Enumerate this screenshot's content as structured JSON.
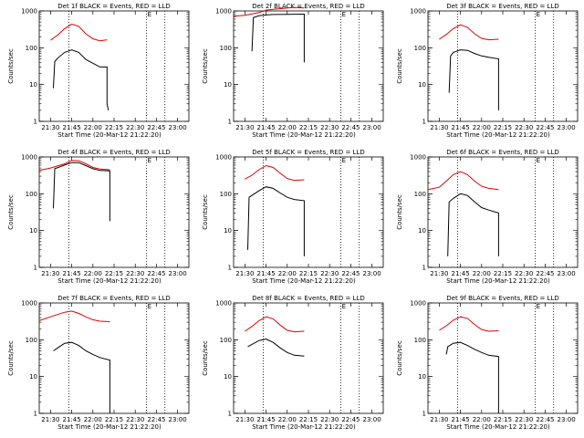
{
  "page": {
    "background": "#ffffff"
  },
  "colors": {
    "events": "#000000",
    "lld": "#dd0000"
  },
  "chart_data": [
    {
      "type": "line",
      "title": "Det 1f BLACK = Events, RED = LLD",
      "xlabel": "Start Time (20-Mar-12 21:22:20)",
      "ylabel": "Counts/sec",
      "yscale": "log",
      "ylim": [
        1,
        1000
      ],
      "xlim": [
        "21:22",
        "23:08"
      ],
      "xticks": [
        "21:30",
        "21:45",
        "22:00",
        "22:15",
        "22:30",
        "22:45",
        "23:00"
      ],
      "yticks": [
        "1",
        "10",
        "100",
        "1000"
      ],
      "grid": false,
      "vlines": [
        "21:43",
        "22:38",
        "22:51"
      ],
      "marker": "E",
      "series": [
        {
          "color": "#dd0000",
          "x": [
            "21:30",
            "21:35",
            "21:40",
            "21:45",
            "21:50",
            "21:55",
            "22:00",
            "22:05",
            "22:10"
          ],
          "y": [
            160,
            220,
            330,
            440,
            380,
            240,
            175,
            155,
            165
          ]
        },
        {
          "color": "#000000",
          "x": [
            "21:32",
            "21:33",
            "21:35",
            "21:40",
            "21:45",
            "21:50",
            "21:55",
            "22:00",
            "22:05",
            "22:10",
            "22:10",
            "22:11"
          ],
          "y": [
            8,
            42,
            52,
            75,
            88,
            75,
            48,
            38,
            30,
            30,
            3,
            2
          ]
        }
      ]
    },
    {
      "type": "line",
      "title": "Det 2f BLACK = Events, RED = LLD",
      "xlabel": "Start Time (20-Mar-12 21:22:20)",
      "ylabel": "Counts/sec",
      "yscale": "log",
      "ylim": [
        1,
        1000
      ],
      "xlim": [
        "21:22",
        "23:08"
      ],
      "xticks": [
        "21:30",
        "21:45",
        "22:00",
        "22:15",
        "22:30",
        "22:45",
        "23:00"
      ],
      "yticks": [
        "1",
        "10",
        "100",
        "1000"
      ],
      "grid": false,
      "vlines": [
        "21:43",
        "22:38",
        "22:51"
      ],
      "marker": "E",
      "series": [
        {
          "color": "#dd0000",
          "x": [
            "21:22",
            "21:30",
            "21:40",
            "21:45",
            "21:50",
            "21:55",
            "22:00",
            "22:05",
            "22:12"
          ],
          "y": [
            720,
            760,
            900,
            1050,
            1100,
            1150,
            1200,
            1250,
            1200
          ]
        },
        {
          "color": "#000000",
          "x": [
            "21:35",
            "21:36",
            "21:40",
            "21:45",
            "21:50",
            "22:00",
            "22:10",
            "22:12",
            "22:12"
          ],
          "y": [
            80,
            660,
            740,
            780,
            800,
            810,
            820,
            820,
            40
          ]
        }
      ]
    },
    {
      "type": "line",
      "title": "Det 3f BLACK = Events, RED = LLD",
      "xlabel": "Start Time (20-Mar-12 21:22:20)",
      "ylabel": "Counts/sec",
      "yscale": "log",
      "ylim": [
        1,
        1000
      ],
      "xlim": [
        "21:22",
        "23:08"
      ],
      "xticks": [
        "21:30",
        "21:45",
        "22:00",
        "22:15",
        "22:30",
        "22:45",
        "23:00"
      ],
      "yticks": [
        "1",
        "10",
        "100",
        "1000"
      ],
      "grid": false,
      "vlines": [
        "21:43",
        "22:38",
        "22:51"
      ],
      "marker": "E",
      "series": [
        {
          "color": "#dd0000",
          "x": [
            "21:30",
            "21:35",
            "21:40",
            "21:45",
            "21:50",
            "21:55",
            "22:00",
            "22:05",
            "22:12"
          ],
          "y": [
            170,
            230,
            330,
            420,
            360,
            240,
            180,
            165,
            170
          ]
        },
        {
          "color": "#000000",
          "x": [
            "21:37",
            "21:38",
            "21:40",
            "21:45",
            "21:50",
            "21:55",
            "22:00",
            "22:05",
            "22:12",
            "22:12"
          ],
          "y": [
            6,
            60,
            75,
            88,
            85,
            70,
            60,
            55,
            50,
            2
          ]
        }
      ]
    },
    {
      "type": "line",
      "title": "Det 4f BLACK = Events, RED = LLD",
      "xlabel": "Start Time (20-Mar-12 21:22:20)",
      "ylabel": "Counts/sec",
      "yscale": "log",
      "ylim": [
        1,
        1000
      ],
      "xlim": [
        "21:22",
        "23:08"
      ],
      "xticks": [
        "21:30",
        "21:45",
        "22:00",
        "22:15",
        "22:30",
        "22:45",
        "23:00"
      ],
      "yticks": [
        "1",
        "10",
        "100",
        "1000"
      ],
      "grid": false,
      "vlines": [
        "21:43",
        "22:38",
        "22:51"
      ],
      "marker": "E",
      "series": [
        {
          "color": "#dd0000",
          "x": [
            "21:22",
            "21:30",
            "21:40",
            "21:45",
            "21:50",
            "21:55",
            "22:00",
            "22:05",
            "22:12"
          ],
          "y": [
            430,
            500,
            650,
            800,
            790,
            650,
            520,
            470,
            450
          ]
        },
        {
          "color": "#000000",
          "x": [
            "21:32",
            "21:33",
            "21:40",
            "21:45",
            "21:50",
            "21:55",
            "22:00",
            "22:05",
            "22:12",
            "22:12"
          ],
          "y": [
            40,
            480,
            600,
            700,
            700,
            580,
            480,
            430,
            420,
            18
          ]
        }
      ]
    },
    {
      "type": "line",
      "title": "Det 5f BLACK = Events, RED = LLD",
      "xlabel": "Start Time (20-Mar-12 21:22:20)",
      "ylabel": "Counts/sec",
      "yscale": "log",
      "ylim": [
        1,
        1000
      ],
      "xlim": [
        "21:22",
        "23:08"
      ],
      "xticks": [
        "21:30",
        "21:45",
        "22:00",
        "22:15",
        "22:30",
        "22:45",
        "23:00"
      ],
      "yticks": [
        "1",
        "10",
        "100",
        "1000"
      ],
      "grid": false,
      "vlines": [
        "21:43",
        "22:38",
        "22:51"
      ],
      "marker": "E",
      "series": [
        {
          "color": "#dd0000",
          "x": [
            "21:30",
            "21:35",
            "21:40",
            "21:45",
            "21:50",
            "21:55",
            "22:00",
            "22:05",
            "22:12"
          ],
          "y": [
            250,
            320,
            450,
            580,
            520,
            360,
            260,
            230,
            240
          ]
        },
        {
          "color": "#000000",
          "x": [
            "21:32",
            "21:33",
            "21:40",
            "21:45",
            "21:50",
            "21:55",
            "22:00",
            "22:05",
            "22:12",
            "22:12"
          ],
          "y": [
            3,
            80,
            120,
            155,
            140,
            105,
            80,
            70,
            65,
            2
          ]
        }
      ]
    },
    {
      "type": "line",
      "title": "Det 6f BLACK = Events, RED = LLD",
      "xlabel": "Start Time (20-Mar-12 21:22:20)",
      "ylabel": "Counts/sec",
      "yscale": "log",
      "ylim": [
        1,
        1000
      ],
      "xlim": [
        "21:22",
        "23:08"
      ],
      "xticks": [
        "21:30",
        "21:45",
        "22:00",
        "22:15",
        "22:30",
        "22:45",
        "23:00"
      ],
      "yticks": [
        "1",
        "10",
        "100",
        "1000"
      ],
      "grid": false,
      "vlines": [
        "21:43",
        "22:38",
        "22:51"
      ],
      "marker": "E",
      "series": [
        {
          "color": "#dd0000",
          "x": [
            "21:22",
            "21:30",
            "21:35",
            "21:40",
            "21:45",
            "21:50",
            "21:55",
            "22:00",
            "22:05",
            "22:12"
          ],
          "y": [
            130,
            150,
            220,
            330,
            400,
            330,
            220,
            160,
            140,
            130
          ]
        },
        {
          "color": "#000000",
          "x": [
            "21:36",
            "21:37",
            "21:40",
            "21:45",
            "21:50",
            "21:55",
            "22:00",
            "22:05",
            "22:12",
            "22:12"
          ],
          "y": [
            2,
            60,
            75,
            100,
            90,
            60,
            42,
            36,
            30,
            2
          ]
        }
      ]
    },
    {
      "type": "line",
      "title": "Det 7f BLACK = Events, RED = LLD",
      "xlabel": "Start Time (20-Mar-12 21:22:20)",
      "ylabel": "Counts/sec",
      "yscale": "log",
      "ylim": [
        1,
        1000
      ],
      "xlim": [
        "21:22",
        "23:08"
      ],
      "xticks": [
        "21:30",
        "21:45",
        "22:00",
        "22:15",
        "22:30",
        "22:45",
        "23:00"
      ],
      "yticks": [
        "1",
        "10",
        "100",
        "1000"
      ],
      "grid": false,
      "vlines": [
        "21:43",
        "22:38",
        "22:51"
      ],
      "marker": "E",
      "series": [
        {
          "color": "#dd0000",
          "x": [
            "21:22",
            "21:30",
            "21:40",
            "21:45",
            "21:50",
            "21:55",
            "22:00",
            "22:05",
            "22:12"
          ],
          "y": [
            330,
            420,
            560,
            600,
            520,
            420,
            350,
            320,
            310
          ]
        },
        {
          "color": "#000000",
          "x": [
            "21:32",
            "21:35",
            "21:40",
            "21:45",
            "21:50",
            "21:55",
            "22:00",
            "22:05",
            "22:12",
            "22:12"
          ],
          "y": [
            50,
            60,
            80,
            85,
            70,
            50,
            40,
            33,
            28,
            1
          ]
        }
      ]
    },
    {
      "type": "line",
      "title": "Det 8f BLACK = Events, RED = LLD",
      "xlabel": "Start Time (20-Mar-12 21:22:20)",
      "ylabel": "Counts/sec",
      "yscale": "log",
      "ylim": [
        1,
        1000
      ],
      "xlim": [
        "21:22",
        "23:08"
      ],
      "xticks": [
        "21:30",
        "21:45",
        "22:00",
        "22:15",
        "22:30",
        "22:45",
        "23:00"
      ],
      "yticks": [
        "1",
        "10",
        "100",
        "1000"
      ],
      "grid": false,
      "vlines": [
        "21:43",
        "22:38",
        "22:51"
      ],
      "marker": "E",
      "series": [
        {
          "color": "#dd0000",
          "x": [
            "21:30",
            "21:35",
            "21:40",
            "21:45",
            "21:50",
            "21:55",
            "22:00",
            "22:05",
            "22:12"
          ],
          "y": [
            170,
            230,
            330,
            420,
            370,
            250,
            180,
            165,
            170
          ]
        },
        {
          "color": "#000000",
          "x": [
            "21:32",
            "21:35",
            "21:40",
            "21:45",
            "21:50",
            "21:55",
            "22:00",
            "22:05",
            "22:12"
          ],
          "y": [
            65,
            75,
            95,
            105,
            85,
            60,
            45,
            38,
            36
          ]
        }
      ]
    },
    {
      "type": "line",
      "title": "Det 9f BLACK = Events, RED = LLD",
      "xlabel": "Start Time (20-Mar-12 21:22:20)",
      "ylabel": "Counts/sec",
      "yscale": "log",
      "ylim": [
        1,
        1000
      ],
      "xlim": [
        "21:22",
        "23:08"
      ],
      "xticks": [
        "21:30",
        "21:45",
        "22:00",
        "22:15",
        "22:30",
        "22:45",
        "23:00"
      ],
      "yticks": [
        "1",
        "10",
        "100",
        "1000"
      ],
      "grid": false,
      "vlines": [
        "21:43",
        "22:38",
        "22:51"
      ],
      "marker": "E",
      "series": [
        {
          "color": "#dd0000",
          "x": [
            "21:30",
            "21:35",
            "21:40",
            "21:45",
            "21:50",
            "21:55",
            "22:00",
            "22:05",
            "22:12"
          ],
          "y": [
            180,
            240,
            340,
            420,
            380,
            260,
            190,
            170,
            175
          ]
        },
        {
          "color": "#000000",
          "x": [
            "21:35",
            "21:36",
            "21:40",
            "21:45",
            "21:50",
            "21:55",
            "22:00",
            "22:05",
            "22:12",
            "22:12"
          ],
          "y": [
            40,
            65,
            80,
            85,
            70,
            55,
            45,
            38,
            35,
            1
          ]
        }
      ]
    }
  ]
}
